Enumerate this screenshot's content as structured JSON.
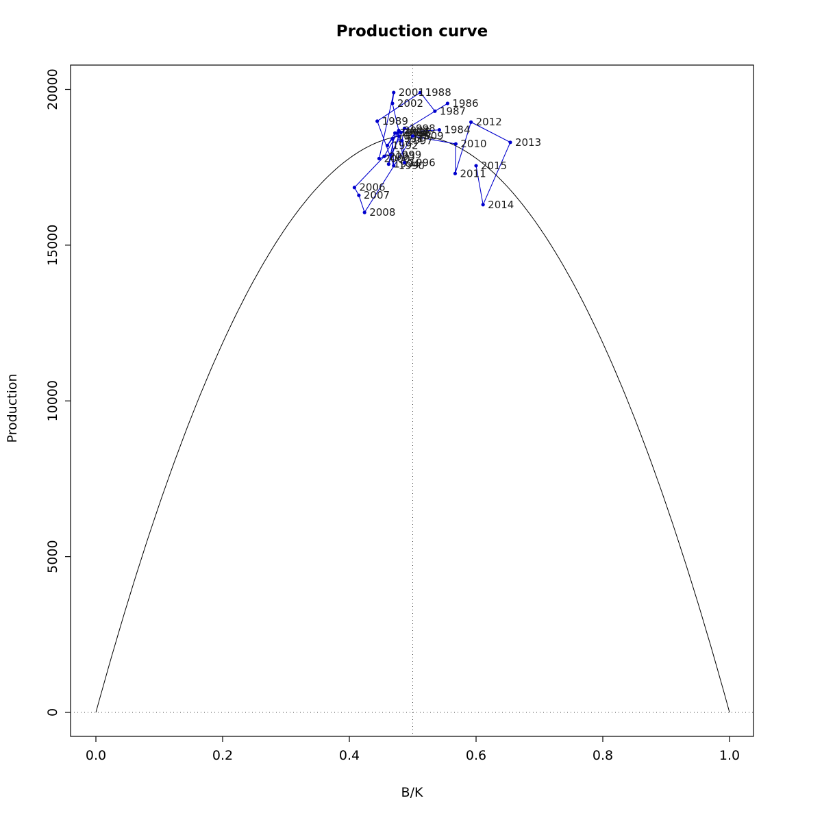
{
  "chart_data": {
    "type": "line",
    "title": "Production curve",
    "xlabel": "B/K",
    "ylabel": "Production",
    "xlim": [
      -0.045,
      1.045
    ],
    "ylim": [
      -900,
      20900
    ],
    "x_ticks": [
      0.0,
      0.2,
      0.4,
      0.6,
      0.8,
      1.0
    ],
    "x_tick_labels": [
      "0.0",
      "0.2",
      "0.4",
      "0.6",
      "0.8",
      "1.0"
    ],
    "y_ticks": [
      0,
      5000,
      10000,
      15000,
      20000
    ],
    "y_tick_labels": [
      "0",
      "5000",
      "10000",
      "15000",
      "20000"
    ],
    "grid": false,
    "legend": "none",
    "curve": {
      "shape": "parabola",
      "formula": "Production = 4 * MSY * (B/K) * (1 - B/K)",
      "msy": 18530,
      "color": "#000000"
    },
    "reference_lines": {
      "vline_x": 0.5,
      "hline_y": 0,
      "style": "dotted",
      "color": "#404040"
    },
    "series_color": "#0000CD",
    "point_radius": 2.6,
    "label_color": "#1a1a1a",
    "label_font_px": 15,
    "points": [
      {
        "year": "1984",
        "x": 0.542,
        "y": 18700
      },
      {
        "year": "1985",
        "x": 0.481,
        "y": 18620
      },
      {
        "year": "1986",
        "x": 0.555,
        "y": 19550
      },
      {
        "year": "1987",
        "x": 0.535,
        "y": 19300
      },
      {
        "year": "1988",
        "x": 0.512,
        "y": 19900
      },
      {
        "year": "1989",
        "x": 0.444,
        "y": 18980
      },
      {
        "year": "1990",
        "x": 0.47,
        "y": 17550
      },
      {
        "year": "1991",
        "x": 0.468,
        "y": 18420
      },
      {
        "year": "1992",
        "x": 0.46,
        "y": 18200
      },
      {
        "year": "1993",
        "x": 0.472,
        "y": 18600
      },
      {
        "year": "1994",
        "x": 0.462,
        "y": 17600
      },
      {
        "year": "1995",
        "x": 0.478,
        "y": 18500
      },
      {
        "year": "1996",
        "x": 0.487,
        "y": 17650
      },
      {
        "year": "1997",
        "x": 0.483,
        "y": 18350
      },
      {
        "year": "1998",
        "x": 0.487,
        "y": 18750
      },
      {
        "year": "1999",
        "x": 0.465,
        "y": 17900
      },
      {
        "year": "2000",
        "x": 0.447,
        "y": 17780
      },
      {
        "year": "2001",
        "x": 0.47,
        "y": 19900
      },
      {
        "year": "2002",
        "x": 0.468,
        "y": 19550
      },
      {
        "year": "2003",
        "x": 0.478,
        "y": 18680
      },
      {
        "year": "2004",
        "x": 0.476,
        "y": 18600
      },
      {
        "year": "2005",
        "x": 0.455,
        "y": 17850
      },
      {
        "year": "2006",
        "x": 0.408,
        "y": 16850
      },
      {
        "year": "2007",
        "x": 0.415,
        "y": 16600
      },
      {
        "year": "2008",
        "x": 0.424,
        "y": 16050
      },
      {
        "year": "2009",
        "x": 0.5,
        "y": 18500
      },
      {
        "year": "2010",
        "x": 0.568,
        "y": 18250
      },
      {
        "year": "2011",
        "x": 0.567,
        "y": 17300
      },
      {
        "year": "2012",
        "x": 0.592,
        "y": 18950
      },
      {
        "year": "2013",
        "x": 0.654,
        "y": 18300
      },
      {
        "year": "2014",
        "x": 0.611,
        "y": 16300
      },
      {
        "year": "2015",
        "x": 0.6,
        "y": 17550
      }
    ]
  }
}
